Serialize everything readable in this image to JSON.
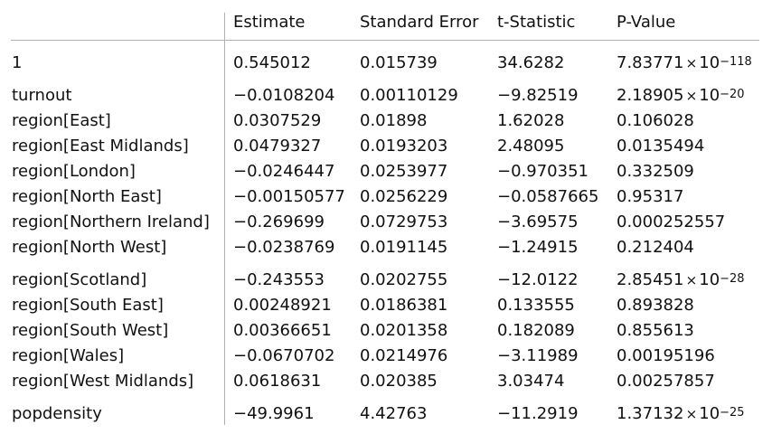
{
  "table": {
    "headers": [
      "",
      "Estimate",
      "Standard Error",
      "t-Statistic",
      "P-Value"
    ],
    "rows": [
      {
        "label": "1",
        "estimate": "0.545012",
        "std_error": "0.015739",
        "t_stat": "34.6282",
        "p_value": {
          "mantissa": "7.83771",
          "times": "×",
          "base": "10",
          "exponent": "−118"
        }
      },
      {
        "label": "turnout",
        "estimate": "−0.0108204",
        "std_error": "0.00110129",
        "t_stat": "−9.82519",
        "p_value": {
          "mantissa": "2.18905",
          "times": "×",
          "base": "10",
          "exponent": "−20"
        }
      },
      {
        "label": "region[East]",
        "estimate": "0.0307529",
        "std_error": "0.01898",
        "t_stat": "1.62028",
        "p_value": {
          "mantissa": "0.106028"
        }
      },
      {
        "label": "region[East Midlands]",
        "estimate": "0.0479327",
        "std_error": "0.0193203",
        "t_stat": "2.48095",
        "p_value": {
          "mantissa": "0.0135494"
        }
      },
      {
        "label": "region[London]",
        "estimate": "−0.0246447",
        "std_error": "0.0253977",
        "t_stat": "−0.970351",
        "p_value": {
          "mantissa": "0.332509"
        }
      },
      {
        "label": "region[North East]",
        "estimate": "−0.00150577",
        "std_error": "0.0256229",
        "t_stat": "−0.0587665",
        "p_value": {
          "mantissa": "0.95317"
        }
      },
      {
        "label": "region[Northern Ireland]",
        "estimate": "−0.269699",
        "std_error": "0.0729753",
        "t_stat": "−3.69575",
        "p_value": {
          "mantissa": "0.000252557"
        }
      },
      {
        "label": "region[North West]",
        "estimate": "−0.0238769",
        "std_error": "0.0191145",
        "t_stat": "−1.24915",
        "p_value": {
          "mantissa": "0.212404"
        }
      },
      {
        "label": "region[Scotland]",
        "estimate": "−0.243553",
        "std_error": "0.0202755",
        "t_stat": "−12.0122",
        "p_value": {
          "mantissa": "2.85451",
          "times": "×",
          "base": "10",
          "exponent": "−28"
        }
      },
      {
        "label": "region[South East]",
        "estimate": "0.00248921",
        "std_error": "0.0186381",
        "t_stat": "0.133555",
        "p_value": {
          "mantissa": "0.893828"
        }
      },
      {
        "label": "region[South West]",
        "estimate": "0.00366651",
        "std_error": "0.0201358",
        "t_stat": "0.182089",
        "p_value": {
          "mantissa": "0.855613"
        }
      },
      {
        "label": "region[Wales]",
        "estimate": "−0.0670702",
        "std_error": "0.0214976",
        "t_stat": "−3.11989",
        "p_value": {
          "mantissa": "0.00195196"
        }
      },
      {
        "label": "region[West Midlands]",
        "estimate": "0.0618631",
        "std_error": "0.020385",
        "t_stat": "3.03474",
        "p_value": {
          "mantissa": "0.00257857"
        }
      },
      {
        "label": "popdensity",
        "estimate": "−49.9961",
        "std_error": "4.42763",
        "t_stat": "−11.2919",
        "p_value": {
          "mantissa": "1.37132",
          "times": "×",
          "base": "10",
          "exponent": "−25"
        }
      }
    ]
  }
}
